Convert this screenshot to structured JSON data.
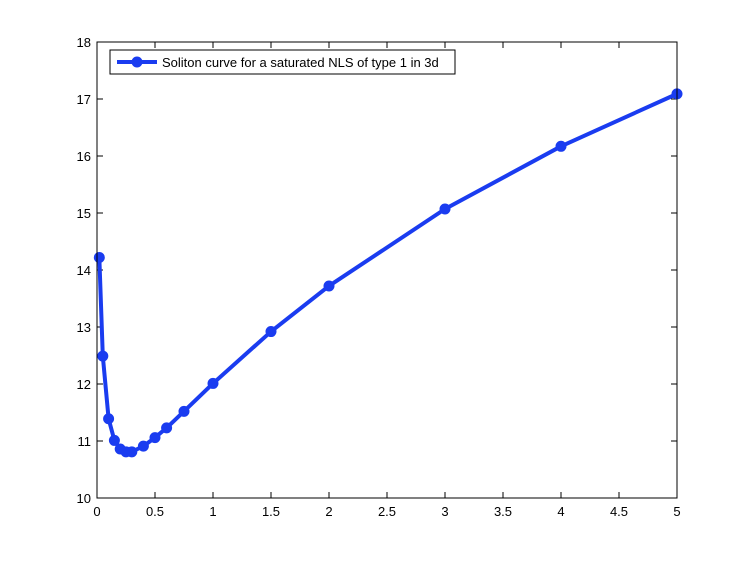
{
  "chart_data": {
    "type": "line",
    "title": "",
    "xlabel": "",
    "ylabel": "",
    "xlim": [
      0,
      5
    ],
    "ylim": [
      10,
      18
    ],
    "grid": false,
    "legend_placement": "top-left",
    "x_ticks": [
      "0",
      "0.5",
      "1",
      "1.5",
      "2",
      "2.5",
      "3",
      "3.5",
      "4",
      "4.5",
      "5"
    ],
    "y_ticks": [
      "10",
      "11",
      "12",
      "13",
      "14",
      "15",
      "16",
      "17",
      "18"
    ],
    "series": [
      {
        "name": "Soliton curve for a saturated NLS of type 1 in 3d",
        "color": "#1a3cf0",
        "marker": "circle",
        "x": [
          0.02,
          0.05,
          0.1,
          0.15,
          0.2,
          0.25,
          0.3,
          0.4,
          0.5,
          0.6,
          0.75,
          1,
          1.5,
          2,
          3,
          4,
          5
        ],
        "y": [
          14.22,
          12.49,
          11.39,
          11.01,
          10.86,
          10.81,
          10.81,
          10.91,
          11.06,
          11.23,
          11.52,
          12.01,
          12.92,
          13.72,
          15.07,
          16.17,
          17.09
        ]
      }
    ]
  }
}
